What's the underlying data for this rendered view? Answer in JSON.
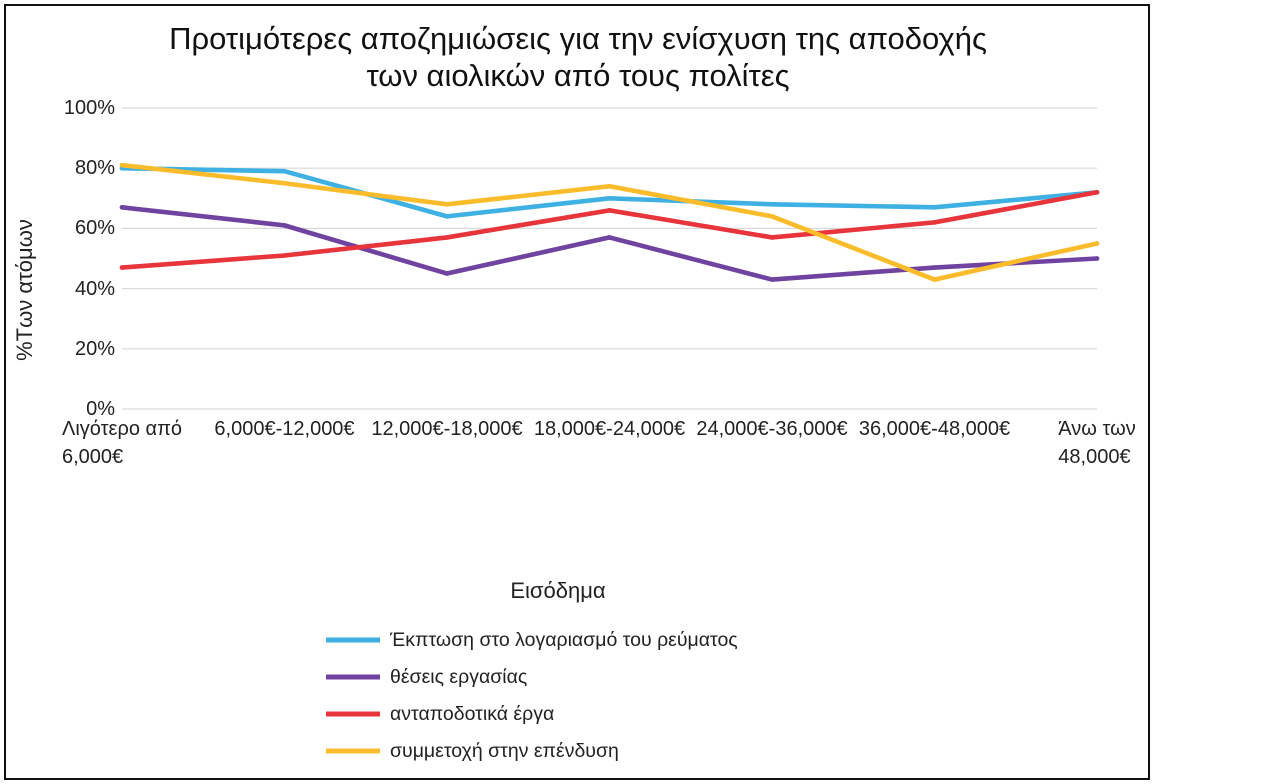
{
  "chart_data": {
    "type": "line",
    "title": "Προτιμότερες αποζημιώσεις για την ενίσχυση της αποδοχής\nτων αιολικών από τους πολίτες",
    "xlabel": "Εισόδημα",
    "ylabel": "%Των ατόμων",
    "ylim": [
      0,
      100
    ],
    "yticks": [
      0,
      20,
      40,
      60,
      80,
      100
    ],
    "ytick_labels": [
      "0%",
      "20%",
      "40%",
      "60%",
      "80%",
      "100%"
    ],
    "grid": true,
    "legend_position": "bottom",
    "categories": [
      "Λιγότερο από\n6,000€",
      "6,000€-12,000€",
      "12,000€-18,000€",
      "18,000€-24,000€",
      "24,000€-36,000€",
      "36,000€-48,000€",
      "Άνω των\n48,000€"
    ],
    "series": [
      {
        "name": "Έκπτωση στο λογαριασμό του ρεύματος",
        "color": "#3fb0e3",
        "values": [
          80,
          79,
          64,
          70,
          68,
          67,
          72
        ]
      },
      {
        "name": "θέσεις εργασίας",
        "color": "#7043a0",
        "values": [
          67,
          61,
          45,
          57,
          43,
          47,
          50
        ]
      },
      {
        "name": "ανταποδοτικά έργα",
        "color": "#e8343b",
        "values": [
          47,
          51,
          57,
          66,
          57,
          62,
          72
        ]
      },
      {
        "name": "συμμετοχή στην επένδυση",
        "color": "#fbbc2c",
        "values": [
          81,
          75,
          68,
          74,
          64,
          43,
          55
        ]
      }
    ]
  }
}
